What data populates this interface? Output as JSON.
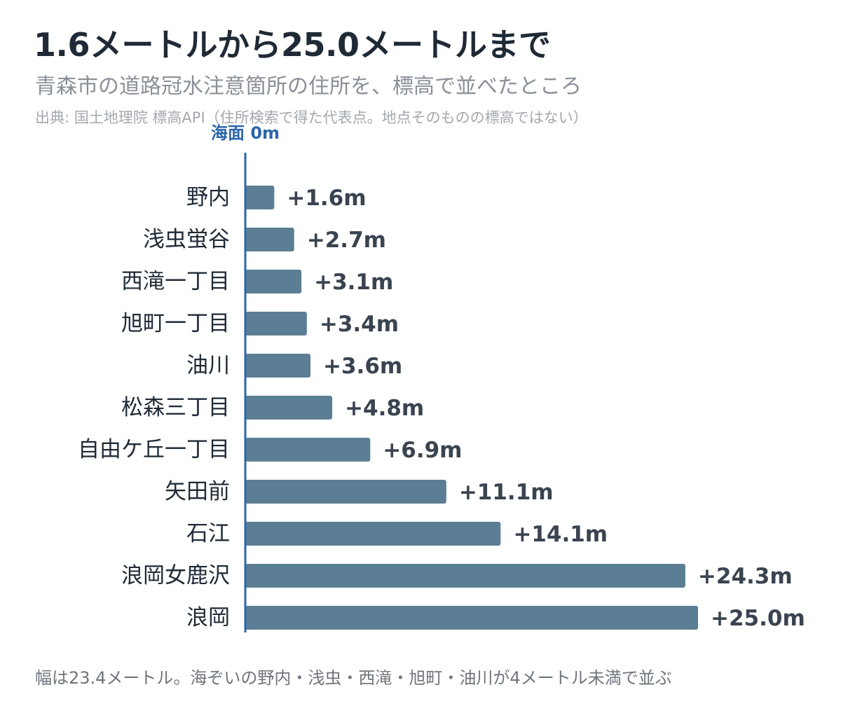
{
  "header": {
    "title": "1.6メートルから25.0メートルまで",
    "subtitle": "青森市の道路冠水注意箇所の住所を、標高で並べたところ",
    "source": "出典: 国土地理院 標高API（住所検索で得た代表点。地点そのものの標高ではない）"
  },
  "footer": {
    "note": "幅は23.4メートル。海ぞいの野内・浅虫・西滝・旭町・油川が4メートル未満で並ぶ"
  },
  "colors": {
    "bar": "#5b7e95",
    "axis": "#2b66a8",
    "title": "#1f2a36",
    "value_label": "#3a4450"
  },
  "chart_data": {
    "type": "bar",
    "orientation": "horizontal",
    "zero_label": "海面 0m",
    "categories": [
      "野内",
      "浅虫蛍谷",
      "西滝一丁目",
      "旭町一丁目",
      "油川",
      "松森三丁目",
      "自由ケ丘一丁目",
      "矢田前",
      "石江",
      "浪岡女鹿沢",
      "浪岡"
    ],
    "values": [
      1.6,
      2.7,
      3.1,
      3.4,
      3.6,
      4.8,
      6.9,
      11.1,
      14.1,
      24.3,
      25.0
    ],
    "value_labels": [
      "+1.6m",
      "+2.7m",
      "+3.1m",
      "+3.4m",
      "+3.6m",
      "+4.8m",
      "+6.9m",
      "+11.1m",
      "+14.1m",
      "+24.3m",
      "+25.0m"
    ],
    "unit": "m",
    "xlim": [
      0,
      25.0
    ],
    "grid": false,
    "legend": "none"
  }
}
